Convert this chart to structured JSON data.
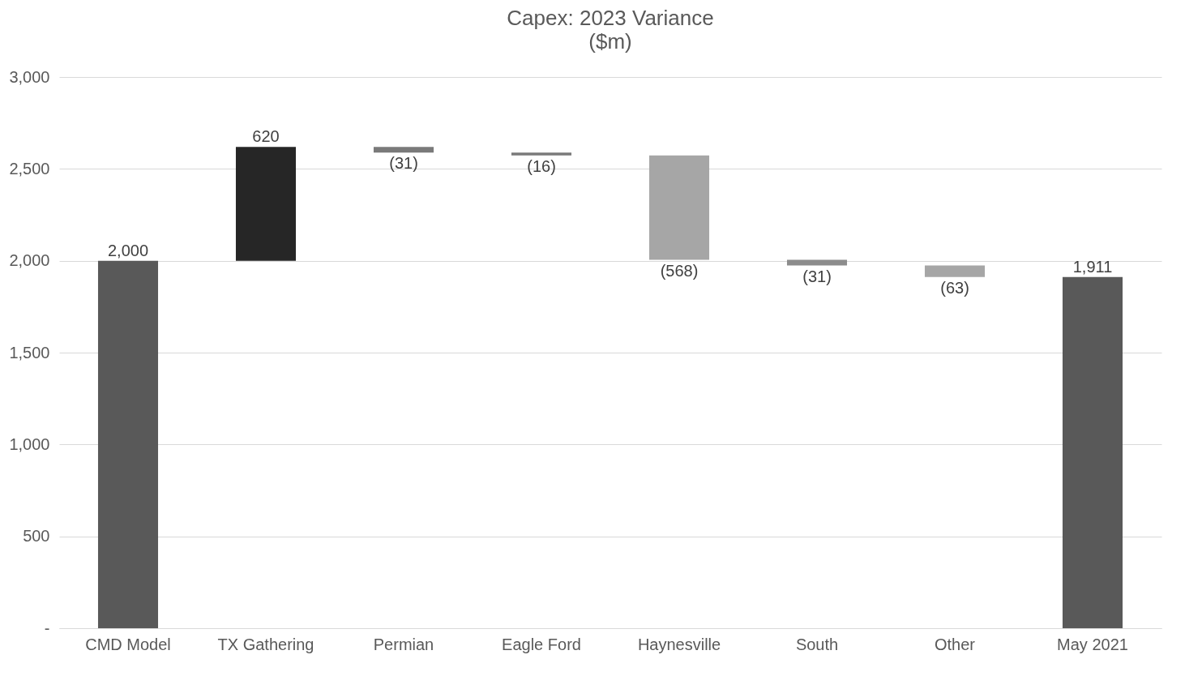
{
  "chart_data": {
    "type": "bar",
    "title": "Capex: 2023 Variance",
    "subtitle": "($m)",
    "categories": [
      "CMD Model",
      "TX Gathering",
      "Permian",
      "Eagle Ford",
      "Haynesville",
      "South",
      "Other",
      "May 2021"
    ],
    "values": [
      2000,
      620,
      -31,
      -16,
      -568,
      -31,
      -63,
      1911
    ],
    "base": [
      0,
      2000,
      2620,
      2589,
      2573,
      2005,
      1974,
      0
    ],
    "colors": [
      "#595959",
      "#262626",
      "#7a7a7a",
      "#7a7a7a",
      "#a6a6a6",
      "#8c8c8c",
      "#a6a6a6",
      "#595959"
    ],
    "value_labels": [
      "2,000",
      "620",
      "(31)",
      "(16)",
      "(568)",
      "(31)",
      "(63)",
      "1,911"
    ],
    "ylim": [
      0,
      3000
    ],
    "yticks": [
      {
        "value": 0,
        "label": "-"
      },
      {
        "value": 500,
        "label": "500"
      },
      {
        "value": 1000,
        "label": "1,000"
      },
      {
        "value": 1500,
        "label": "1,500"
      },
      {
        "value": 2000,
        "label": "2,000"
      },
      {
        "value": 2500,
        "label": "2,500"
      },
      {
        "value": 3000,
        "label": "3,000"
      }
    ],
    "grid": "y"
  }
}
